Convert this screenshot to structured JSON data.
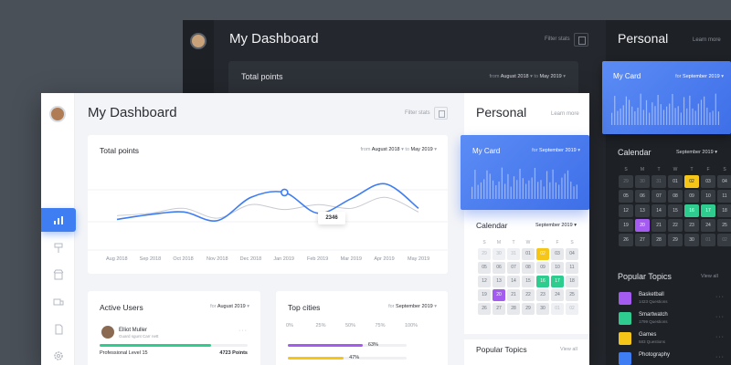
{
  "dark": {
    "title": "My Dashboard",
    "filter_label": "Filter stats",
    "total_points": {
      "title": "Total points",
      "from_label": "from",
      "from_value": "August 2018",
      "to_label": "to",
      "to_value": "May 2019"
    },
    "personal_title": "Personal",
    "learn_more": "Learn more",
    "my_card": {
      "title": "My Card",
      "for_label": "for",
      "month": "September 2019"
    },
    "calendar": {
      "title": "Calendar",
      "month": "September 2019",
      "weekdays": [
        "S",
        "M",
        "T",
        "W",
        "T",
        "F",
        "S"
      ],
      "days": [
        {
          "n": "29",
          "s": "mut"
        },
        {
          "n": "30",
          "s": "mut"
        },
        {
          "n": "31",
          "s": "mut"
        },
        {
          "n": "01",
          "s": ""
        },
        {
          "n": "02",
          "s": "y"
        },
        {
          "n": "03",
          "s": ""
        },
        {
          "n": "04",
          "s": ""
        },
        {
          "n": "05",
          "s": ""
        },
        {
          "n": "06",
          "s": ""
        },
        {
          "n": "07",
          "s": ""
        },
        {
          "n": "08",
          "s": ""
        },
        {
          "n": "09",
          "s": ""
        },
        {
          "n": "10",
          "s": ""
        },
        {
          "n": "11",
          "s": ""
        },
        {
          "n": "12",
          "s": ""
        },
        {
          "n": "13",
          "s": ""
        },
        {
          "n": "14",
          "s": ""
        },
        {
          "n": "15",
          "s": ""
        },
        {
          "n": "16",
          "s": "g"
        },
        {
          "n": "17",
          "s": "g"
        },
        {
          "n": "18",
          "s": ""
        },
        {
          "n": "19",
          "s": ""
        },
        {
          "n": "20",
          "s": "p"
        },
        {
          "n": "21",
          "s": ""
        },
        {
          "n": "22",
          "s": ""
        },
        {
          "n": "23",
          "s": ""
        },
        {
          "n": "24",
          "s": ""
        },
        {
          "n": "25",
          "s": ""
        },
        {
          "n": "26",
          "s": ""
        },
        {
          "n": "27",
          "s": ""
        },
        {
          "n": "28",
          "s": ""
        },
        {
          "n": "29",
          "s": ""
        },
        {
          "n": "30",
          "s": ""
        },
        {
          "n": "01",
          "s": "mut"
        },
        {
          "n": "02",
          "s": "mut"
        }
      ]
    },
    "popular_topics": {
      "title": "Popular Topics",
      "view_all": "View all",
      "items": [
        {
          "name": "Basketball",
          "questions": "1423 Questions",
          "color": "#a35bf0"
        },
        {
          "name": "Smartwatch",
          "questions": "1799 Questions",
          "color": "#2ecc8e"
        },
        {
          "name": "Games",
          "questions": "583 Questions",
          "color": "#f5c518"
        },
        {
          "name": "Photography",
          "questions": "",
          "color": "#3f7df2"
        }
      ]
    }
  },
  "light": {
    "title": "My Dashboard",
    "filter_label": "Filter stats",
    "total_points": {
      "title": "Total points",
      "from_label": "from",
      "from_value": "August 2018",
      "to_label": "to",
      "to_value": "May 2019",
      "tooltip": "2346"
    },
    "personal_title": "Personal",
    "learn_more": "Learn more",
    "my_card": {
      "title": "My Card",
      "for_label": "for",
      "month": "September 2019"
    },
    "calendar": {
      "title": "Calendar",
      "month": "September 2019",
      "weekdays": [
        "S",
        "M",
        "T",
        "W",
        "T",
        "F",
        "S"
      ],
      "days": [
        {
          "n": "29",
          "s": "mut"
        },
        {
          "n": "30",
          "s": "mut"
        },
        {
          "n": "31",
          "s": "mut"
        },
        {
          "n": "01",
          "s": ""
        },
        {
          "n": "02",
          "s": "y"
        },
        {
          "n": "03",
          "s": ""
        },
        {
          "n": "04",
          "s": ""
        },
        {
          "n": "05",
          "s": ""
        },
        {
          "n": "06",
          "s": ""
        },
        {
          "n": "07",
          "s": ""
        },
        {
          "n": "08",
          "s": ""
        },
        {
          "n": "09",
          "s": ""
        },
        {
          "n": "10",
          "s": ""
        },
        {
          "n": "11",
          "s": ""
        },
        {
          "n": "12",
          "s": ""
        },
        {
          "n": "13",
          "s": ""
        },
        {
          "n": "14",
          "s": ""
        },
        {
          "n": "15",
          "s": ""
        },
        {
          "n": "16",
          "s": "g"
        },
        {
          "n": "17",
          "s": "g"
        },
        {
          "n": "18",
          "s": ""
        },
        {
          "n": "19",
          "s": ""
        },
        {
          "n": "20",
          "s": "p"
        },
        {
          "n": "21",
          "s": ""
        },
        {
          "n": "22",
          "s": ""
        },
        {
          "n": "23",
          "s": ""
        },
        {
          "n": "24",
          "s": ""
        },
        {
          "n": "25",
          "s": ""
        },
        {
          "n": "26",
          "s": ""
        },
        {
          "n": "27",
          "s": ""
        },
        {
          "n": "28",
          "s": ""
        },
        {
          "n": "29",
          "s": ""
        },
        {
          "n": "30",
          "s": ""
        },
        {
          "n": "01",
          "s": "mut"
        },
        {
          "n": "02",
          "s": "mut"
        }
      ]
    },
    "popular_topics": {
      "title": "Popular Topics",
      "view_all": "View all"
    },
    "active_users": {
      "title": "Active Users",
      "for_label": "for",
      "month": "August 2019",
      "user_name": "Elliot Muller",
      "user_sub": "Guard sgunt Carr nett",
      "level": "Professional Level 15",
      "points": "4723 Points",
      "progress": 0.75
    },
    "top_cities": {
      "title": "Top cities",
      "for_label": "for",
      "month": "September 2019",
      "axis": [
        "0%",
        "25%",
        "50%",
        "75%",
        "100%"
      ],
      "bars": [
        {
          "value": 63,
          "label": "63%",
          "color": "#a35bf0"
        },
        {
          "value": 47,
          "label": "47%",
          "color": "#f5c518"
        }
      ]
    }
  },
  "chart_data": {
    "type": "line",
    "title": "Total points",
    "categories": [
      "Aug 2018",
      "Sep 2018",
      "Oct 2018",
      "Nov 2018",
      "Dec 2018",
      "Jan 2019",
      "Feb 2019",
      "Mar 2019",
      "Apr 2019",
      "May 2019"
    ],
    "series": [
      {
        "values": [
          1250,
          1450,
          1550,
          1200,
          2150,
          2346,
          1500,
          2100,
          2700,
          1700
        ],
        "color": "#3f7df2"
      },
      {
        "values": [
          1400,
          1500,
          1700,
          1300,
          1850,
          1650,
          1850,
          1700,
          2150,
          1550
        ],
        "color": "#c7cad0"
      }
    ],
    "ylim": [
      0,
      3200
    ],
    "highlight": {
      "category": "Jan 2019",
      "value": 2346
    }
  }
}
